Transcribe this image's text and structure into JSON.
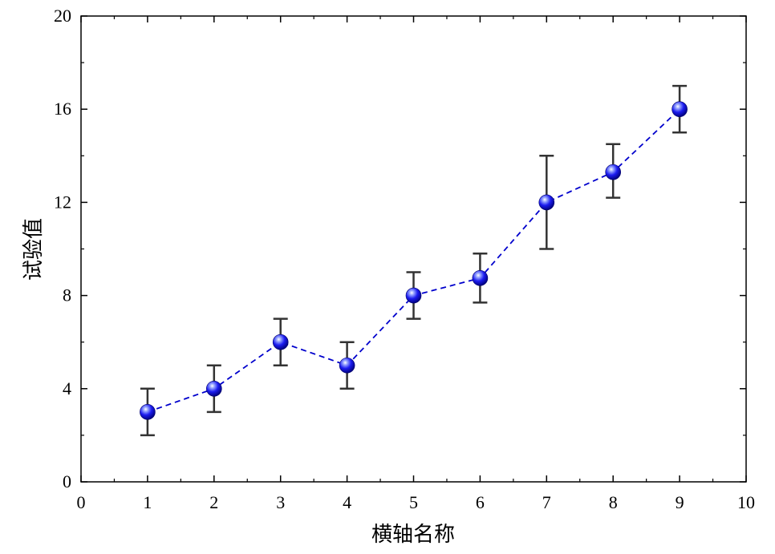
{
  "chart_data": {
    "type": "scatter",
    "title": "",
    "xlabel": "横轴名称",
    "ylabel": "试验值",
    "xlim": [
      0,
      10
    ],
    "ylim": [
      0,
      20
    ],
    "x_ticks": [
      0,
      1,
      2,
      3,
      4,
      5,
      6,
      7,
      8,
      9,
      10
    ],
    "y_ticks": [
      0,
      4,
      8,
      12,
      16,
      20
    ],
    "grid": false,
    "legend": "none",
    "series": [
      {
        "style": "markers + dashed line with error bars",
        "color": "#0000cc",
        "line_style": "dashed",
        "errorbar_color": "#333333",
        "x": [
          1,
          2,
          3,
          4,
          5,
          6,
          7,
          8,
          9
        ],
        "y": [
          3,
          4,
          6,
          5,
          8,
          8.75,
          12,
          13.3,
          16
        ],
        "error_low": [
          2,
          3,
          5,
          4,
          7,
          7.7,
          10,
          12.2,
          15
        ],
        "error_high": [
          4,
          5,
          7,
          6,
          9,
          9.8,
          14,
          14.5,
          17
        ]
      }
    ]
  }
}
